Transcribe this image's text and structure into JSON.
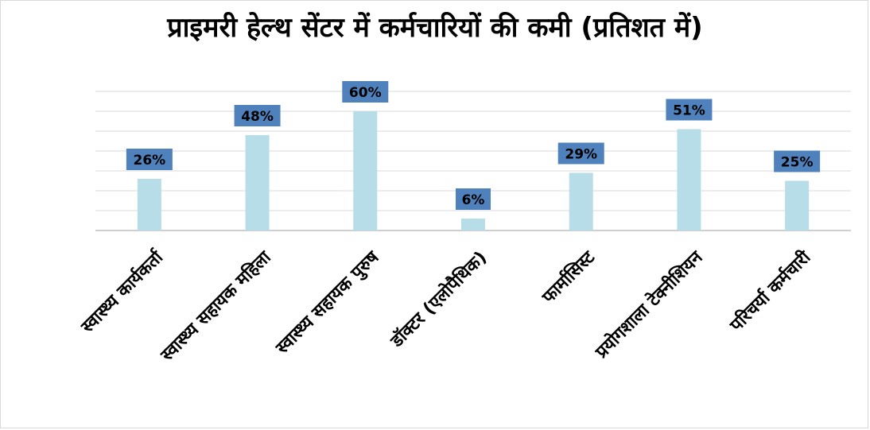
{
  "chart_data": {
    "type": "bar",
    "title": "प्राइमरी हेल्थ सेंटर में कर्मचारियों की कमी (प्रतिशत में)",
    "categories": [
      "स्वास्थ्य कार्यकर्ता",
      "स्वास्थ्य सहायक महिला",
      "स्वास्थ्य सहायक पुरुष",
      "डॉक्टर (एलोपैथिक)",
      "फार्मासिस्ट",
      "प्रयोगशाला टेक्नीशियन",
      "परिचर्या कर्मचारी"
    ],
    "values": [
      26,
      48,
      60,
      6,
      29,
      51,
      25
    ],
    "data_labels": [
      "26%",
      "48%",
      "60%",
      "6%",
      "29%",
      "51%",
      "25%"
    ],
    "ylim": [
      0,
      70
    ],
    "grid": true,
    "legend": "none",
    "colors": {
      "bar": "#b7dde8",
      "label_bg": "#4f81bd",
      "gridline": "#d9d9d9",
      "axis": "#bfbfbf"
    }
  }
}
